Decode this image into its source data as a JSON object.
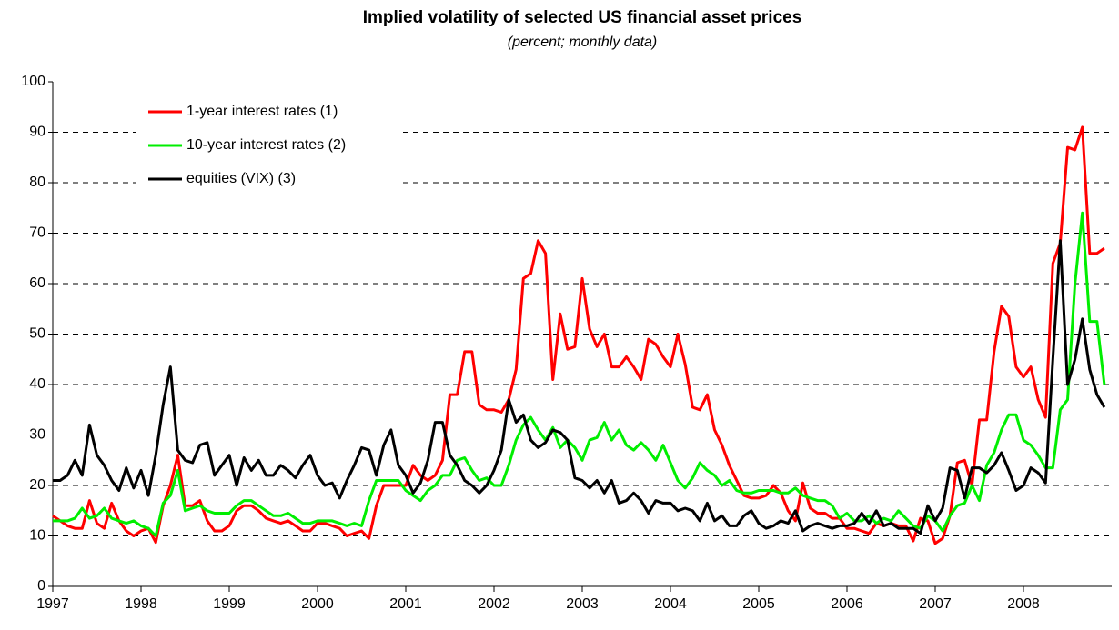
{
  "chart_data": {
    "type": "line",
    "title": "Implied volatility of selected US financial asset prices",
    "subtitle": "(percent; monthly data)",
    "categories": [
      "1997",
      null,
      null,
      null,
      null,
      null,
      null,
      null,
      null,
      null,
      null,
      null,
      "1998",
      null,
      null,
      null,
      null,
      null,
      null,
      null,
      null,
      null,
      null,
      null,
      "1999",
      null,
      null,
      null,
      null,
      null,
      null,
      null,
      null,
      null,
      null,
      null,
      "2000",
      null,
      null,
      null,
      null,
      null,
      null,
      null,
      null,
      null,
      null,
      null,
      "2001",
      null,
      null,
      null,
      null,
      null,
      null,
      null,
      null,
      null,
      null,
      null,
      "2002",
      null,
      null,
      null,
      null,
      null,
      null,
      null,
      null,
      null,
      null,
      null,
      "2003",
      null,
      null,
      null,
      null,
      null,
      null,
      null,
      null,
      null,
      null,
      null,
      "2004",
      null,
      null,
      null,
      null,
      null,
      null,
      null,
      null,
      null,
      null,
      null,
      "2005",
      null,
      null,
      null,
      null,
      null,
      null,
      null,
      null,
      null,
      null,
      null,
      "2006",
      null,
      null,
      null,
      null,
      null,
      null,
      null,
      null,
      null,
      null,
      null,
      "2007",
      null,
      null,
      null,
      null,
      null,
      null,
      null,
      null,
      null,
      null,
      null,
      "2008",
      null,
      null,
      null,
      null,
      null,
      null,
      null,
      null,
      null,
      null,
      null
    ],
    "series": [
      {
        "name": "1-year interest rates (1)",
        "color": "#ff0000",
        "values": [
          14,
          13,
          12,
          11.5,
          11.5,
          17,
          12.5,
          11.5,
          16.5,
          13,
          11,
          10,
          11,
          11.5,
          8.7,
          16,
          20,
          26,
          16,
          16,
          17,
          13,
          11,
          11,
          12,
          15,
          16,
          16,
          15,
          13.5,
          13,
          12.5,
          13,
          12,
          11,
          11,
          12.5,
          12.5,
          12,
          11.5,
          10,
          10.5,
          11,
          9.5,
          16,
          20,
          20,
          20,
          20,
          24,
          22,
          21,
          22,
          25,
          38,
          38,
          46.5,
          46.5,
          36,
          35,
          35,
          34.5,
          37,
          43,
          61,
          62,
          68.5,
          66,
          41,
          54,
          47,
          47.5,
          61,
          51,
          47.5,
          50,
          43.5,
          43.5,
          45.5,
          43.5,
          41,
          49,
          48,
          45.5,
          43.5,
          50,
          44,
          35.5,
          35,
          38,
          31,
          28,
          24,
          21,
          18,
          17.5,
          17.5,
          18,
          20,
          18.5,
          15,
          13,
          20.5,
          15.5,
          14.5,
          14.5,
          13.5,
          13.5,
          11.5,
          11.5,
          11,
          10.5,
          12.5,
          12,
          12.5,
          12,
          12,
          9,
          13.5,
          13,
          8.5,
          9.5,
          14,
          24.5,
          25,
          20,
          33,
          33,
          46.5,
          55.5,
          53.5,
          43.5,
          41.5,
          43.5,
          37,
          33.5,
          64,
          68,
          87,
          86.5,
          91,
          66,
          66,
          67
        ]
      },
      {
        "name": "10-year interest rates (2)",
        "color": "#00ee00",
        "values": [
          13,
          13,
          13,
          13.5,
          15.5,
          13.5,
          14,
          15.5,
          13.5,
          13,
          12.5,
          13,
          12,
          11.5,
          10,
          16.5,
          18,
          23,
          15,
          15.5,
          16,
          15,
          14.5,
          14.5,
          14.5,
          16,
          17,
          17,
          16,
          15,
          14,
          14,
          14.5,
          13.5,
          12.5,
          12.5,
          13,
          13,
          13,
          12.5,
          12,
          12.5,
          12,
          17,
          21,
          21,
          21,
          21,
          19,
          18,
          17,
          19,
          20,
          22,
          22,
          25,
          25.5,
          23,
          21,
          21.5,
          20,
          20,
          24,
          29,
          32,
          33.5,
          31,
          29,
          31.5,
          27.5,
          29,
          27.5,
          25,
          29,
          29.5,
          32.5,
          29,
          31,
          28,
          27,
          28.5,
          27,
          25,
          28,
          24.5,
          21,
          19.5,
          21.5,
          24.5,
          23,
          22,
          20,
          21,
          19,
          18.5,
          18.5,
          19,
          19,
          19,
          18.5,
          18.5,
          19.5,
          18,
          17.5,
          17,
          17,
          16,
          13.5,
          14.5,
          13,
          13,
          14,
          12.5,
          13.5,
          13,
          15,
          13.5,
          12,
          11.5,
          14,
          13,
          11,
          14,
          16,
          16.5,
          20,
          17,
          24,
          26.5,
          31,
          34,
          34,
          29,
          28,
          26,
          23.5,
          23.5,
          35,
          37,
          60,
          74,
          52.5,
          52.5,
          40
        ]
      },
      {
        "name": "equities (VIX) (3)",
        "color": "#000000",
        "values": [
          21,
          21,
          22,
          25,
          22,
          32,
          26,
          24,
          21,
          19,
          23.5,
          19.5,
          23,
          18,
          26,
          36,
          43.5,
          27,
          25,
          24.5,
          28,
          28.5,
          22,
          24,
          26,
          20,
          25.5,
          23,
          25,
          22,
          22,
          24,
          23,
          21.5,
          24,
          26,
          22,
          20,
          20.5,
          17.5,
          21,
          24,
          27.5,
          27,
          22,
          28,
          31,
          24,
          22,
          18.5,
          20.5,
          25,
          32.5,
          32.5,
          26,
          24,
          21,
          20,
          18.5,
          20,
          23,
          27,
          37,
          32.5,
          34,
          29,
          27.5,
          28.5,
          31,
          30.5,
          29,
          21.5,
          21,
          19.5,
          21,
          18.5,
          21,
          16.5,
          17,
          18.5,
          17,
          14.5,
          17,
          16.5,
          16.5,
          15,
          15.5,
          15,
          13,
          16.5,
          13,
          14,
          12,
          12,
          14,
          15,
          12.5,
          11.5,
          12,
          13,
          12.5,
          15,
          11,
          12,
          12.5,
          12,
          11.5,
          12,
          12,
          12.5,
          14.5,
          12.5,
          15,
          12,
          12.5,
          11.5,
          11.5,
          11.5,
          10.5,
          16,
          13,
          15.5,
          23.5,
          23,
          17.5,
          23.5,
          23.5,
          22.5,
          24,
          26.5,
          23,
          19,
          20,
          23.5,
          22.5,
          20.5,
          45,
          68.5,
          40,
          45,
          53,
          43,
          38,
          35.5
        ]
      }
    ],
    "ylim": [
      0,
      100
    ],
    "yticks": [
      0,
      10,
      20,
      30,
      40,
      50,
      60,
      70,
      80,
      90,
      100
    ],
    "grid": true
  }
}
